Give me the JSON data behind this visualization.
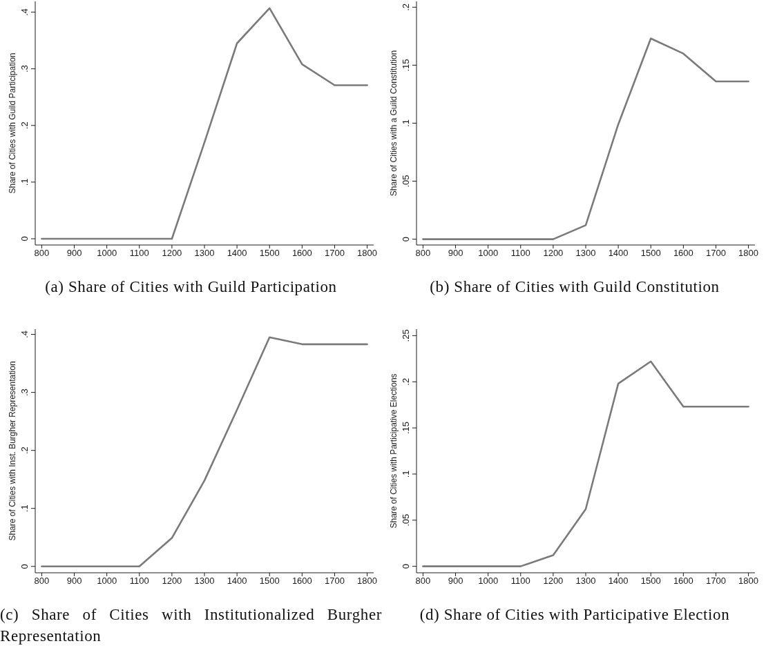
{
  "chart_data": [
    {
      "type": "line",
      "title": "(a) Share of Cities with Guild Participation",
      "ylabel": "Share of Cities with Guild Participation",
      "x": [
        800,
        900,
        1000,
        1100,
        1200,
        1300,
        1400,
        1500,
        1600,
        1700,
        1800
      ],
      "values": [
        0,
        0,
        0,
        0,
        0,
        0.17,
        0.345,
        0.407,
        0.308,
        0.271,
        0.271
      ],
      "color": "#7a7a7a",
      "xlim": [
        780,
        1820
      ],
      "xticks": [
        800,
        900,
        1000,
        1100,
        1200,
        1300,
        1400,
        1500,
        1600,
        1700,
        1800
      ],
      "ylim": [
        -0.011,
        0.419
      ],
      "yticks": [
        {
          "value": 0,
          "label": "0"
        },
        {
          "value": 0.1,
          "label": ".1"
        },
        {
          "value": 0.2,
          "label": ".2"
        },
        {
          "value": 0.3,
          "label": ".3"
        },
        {
          "value": 0.4,
          "label": ".4"
        }
      ]
    },
    {
      "type": "line",
      "title": "(b) Share of Cities with Guild Constitution",
      "ylabel": "Share of Cities with a Guild Constitution",
      "x": [
        800,
        900,
        1000,
        1100,
        1200,
        1300,
        1400,
        1500,
        1600,
        1700,
        1800
      ],
      "values": [
        0,
        0,
        0,
        0,
        0,
        0.012,
        0.099,
        0.173,
        0.16,
        0.136,
        0.136
      ],
      "color": "#7a7a7a",
      "xlim": [
        780,
        1820
      ],
      "xticks": [
        800,
        900,
        1000,
        1100,
        1200,
        1300,
        1400,
        1500,
        1600,
        1700,
        1800
      ],
      "ylim": [
        -0.005,
        0.205
      ],
      "yticks": [
        {
          "value": 0,
          "label": "0"
        },
        {
          "value": 0.05,
          "label": ".05"
        },
        {
          "value": 0.1,
          "label": ".1"
        },
        {
          "value": 0.15,
          "label": ".15"
        },
        {
          "value": 0.2,
          "label": ".2"
        }
      ]
    },
    {
      "type": "line",
      "title": "(c) Share of Cities with Institutionalized Burgher Representation",
      "ylabel": "Share of Cities with Inst. Burgher Representation",
      "x": [
        800,
        900,
        1000,
        1100,
        1200,
        1300,
        1400,
        1500,
        1600,
        1700,
        1800
      ],
      "values": [
        0,
        0,
        0,
        0,
        0.049,
        0.148,
        0.27,
        0.395,
        0.383,
        0.383,
        0.383
      ],
      "color": "#7a7a7a",
      "xlim": [
        780,
        1820
      ],
      "xticks": [
        800,
        900,
        1000,
        1100,
        1200,
        1300,
        1400,
        1500,
        1600,
        1700,
        1800
      ],
      "ylim": [
        -0.011,
        0.409
      ],
      "yticks": [
        {
          "value": 0,
          "label": "0"
        },
        {
          "value": 0.1,
          "label": ".1"
        },
        {
          "value": 0.2,
          "label": ".2"
        },
        {
          "value": 0.3,
          "label": ".3"
        },
        {
          "value": 0.4,
          "label": ".4"
        }
      ]
    },
    {
      "type": "line",
      "title": "(d) Share of Cities with Participative Election",
      "ylabel": "Share of Cities with Participative Elections",
      "x": [
        800,
        900,
        1000,
        1100,
        1200,
        1300,
        1400,
        1500,
        1600,
        1700,
        1800
      ],
      "values": [
        0,
        0,
        0,
        0,
        0.012,
        0.062,
        0.198,
        0.222,
        0.173,
        0.173,
        0.173
      ],
      "color": "#7a7a7a",
      "xlim": [
        780,
        1820
      ],
      "xticks": [
        800,
        900,
        1000,
        1100,
        1200,
        1300,
        1400,
        1500,
        1600,
        1700,
        1800
      ],
      "ylim": [
        -0.007,
        0.257
      ],
      "yticks": [
        {
          "value": 0,
          "label": "0"
        },
        {
          "value": 0.05,
          "label": ".05"
        },
        {
          "value": 0.1,
          "label": ".1"
        },
        {
          "value": 0.15,
          "label": ".15"
        },
        {
          "value": 0.2,
          "label": ".2"
        },
        {
          "value": 0.25,
          "label": ".25"
        }
      ]
    }
  ]
}
